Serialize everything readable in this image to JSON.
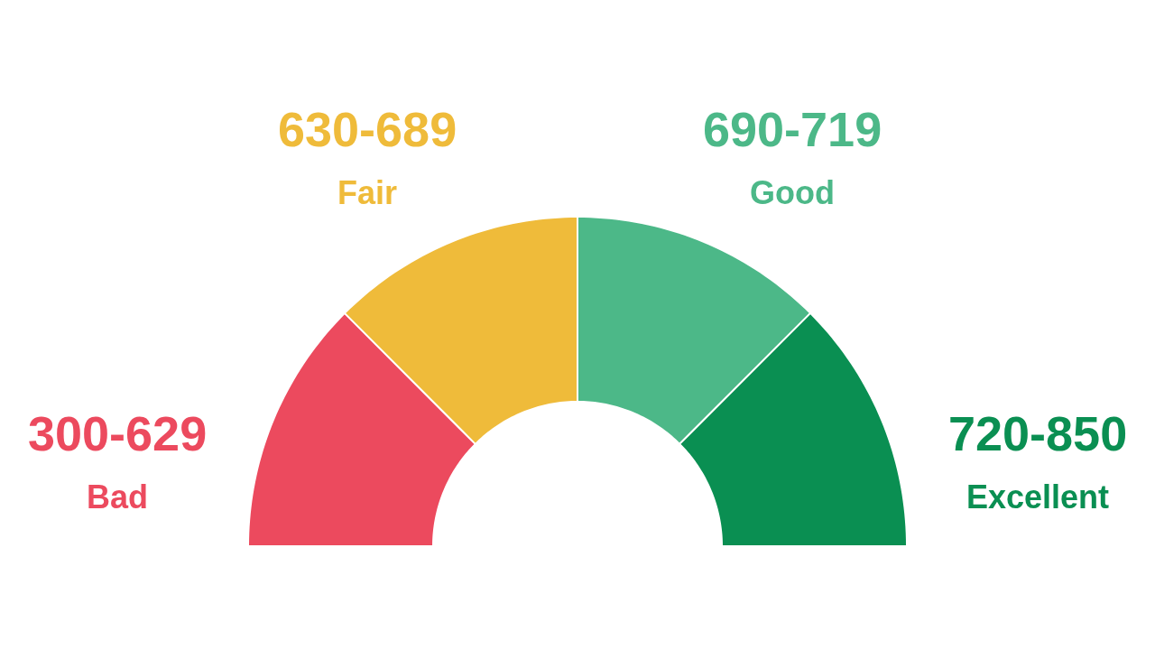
{
  "chart_data": {
    "type": "donut",
    "categories": [
      "Bad",
      "Fair",
      "Good",
      "Excellent"
    ],
    "values": [
      25,
      25,
      25,
      25
    ],
    "colors": [
      "#ec4a5e",
      "#efbb3a",
      "#4cb888",
      "#0a8f52"
    ],
    "value_labels": [
      "300-629",
      "630-689",
      "690-719",
      "720-850"
    ]
  }
}
